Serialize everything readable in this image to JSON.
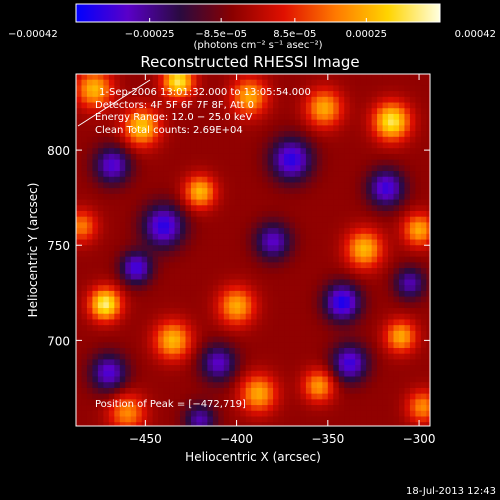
{
  "chart_data": {
    "type": "heatmap",
    "title": "Reconstructed RHESSI Image",
    "xlabel": "Heliocentric X (arcsec)",
    "ylabel": "Heliocentric Y (arcsec)",
    "xlim": [
      -488,
      -294
    ],
    "ylim": [
      655,
      840
    ],
    "x_ticks": [
      -450,
      -400,
      -350,
      -300
    ],
    "x_tick_labels": [
      "−450",
      "−400",
      "−350",
      "−300"
    ],
    "y_ticks": [
      700,
      750,
      800
    ],
    "y_tick_labels": [
      "700",
      "750",
      "800"
    ],
    "colorbar": {
      "min": -0.00042,
      "max": 0.00042,
      "ticks": [
        -0.00042,
        -0.00025,
        -8.5e-05,
        8.5e-05,
        0.00025,
        0.00042
      ],
      "tick_labels": [
        "−0.00042",
        "−0.00025",
        "−8.5e−05",
        "8.5e−05",
        "0.00025",
        "0.00042"
      ],
      "label": "(photons cm⁻² s⁻¹ asec⁻²)",
      "colors": [
        "#0000ff",
        "#5a00c8",
        "#2a0a40",
        "#8a0000",
        "#e01000",
        "#ff7a00",
        "#ffd400",
        "#ffffe0"
      ]
    },
    "info_lines": [
      "1-Sep-2006 13:01:32.000 to 13:05:54.000",
      "Detectors: 4F 5F 6F 7F 8F, Att 0",
      "Energy Range: 12.0 − 25.0 keV",
      "Clean     Total counts: 2.69E+04"
    ],
    "peak_label": "Position of Peak = [−472,719]",
    "peak": {
      "x": -472,
      "y": 719,
      "value": 0.00042
    },
    "timestamp": "18-Jul-2013 12:43",
    "hotspots": [
      {
        "x": -472,
        "y": 719,
        "v": 1.0,
        "s": 6
      },
      {
        "x": -432,
        "y": 836,
        "v": 0.95,
        "s": 6
      },
      {
        "x": -315,
        "y": 815,
        "v": 0.95,
        "s": 7
      },
      {
        "x": -452,
        "y": 812,
        "v": 0.8,
        "s": 7
      },
      {
        "x": -478,
        "y": 832,
        "v": 0.75,
        "s": 7
      },
      {
        "x": -420,
        "y": 778,
        "v": 0.75,
        "s": 6
      },
      {
        "x": -393,
        "y": 828,
        "v": 0.7,
        "s": 7
      },
      {
        "x": -352,
        "y": 822,
        "v": 0.7,
        "s": 7
      },
      {
        "x": -435,
        "y": 700,
        "v": 0.75,
        "s": 7
      },
      {
        "x": -400,
        "y": 718,
        "v": 0.7,
        "s": 7
      },
      {
        "x": -388,
        "y": 672,
        "v": 0.7,
        "s": 7
      },
      {
        "x": -330,
        "y": 748,
        "v": 0.75,
        "s": 7
      },
      {
        "x": -300,
        "y": 758,
        "v": 0.7,
        "s": 6
      },
      {
        "x": -310,
        "y": 702,
        "v": 0.7,
        "s": 6
      },
      {
        "x": -355,
        "y": 676,
        "v": 0.65,
        "s": 6
      },
      {
        "x": -460,
        "y": 662,
        "v": 0.6,
        "s": 7
      },
      {
        "x": -298,
        "y": 665,
        "v": 0.6,
        "s": 6
      },
      {
        "x": -485,
        "y": 760,
        "v": 0.55,
        "s": 6
      },
      {
        "x": -440,
        "y": 760,
        "v": -0.75,
        "s": 8
      },
      {
        "x": -468,
        "y": 792,
        "v": -0.65,
        "s": 7
      },
      {
        "x": -370,
        "y": 795,
        "v": -0.75,
        "s": 8
      },
      {
        "x": -318,
        "y": 780,
        "v": -0.7,
        "s": 7
      },
      {
        "x": -342,
        "y": 720,
        "v": -0.8,
        "s": 7
      },
      {
        "x": -380,
        "y": 752,
        "v": -0.6,
        "s": 7
      },
      {
        "x": -455,
        "y": 738,
        "v": -0.7,
        "s": 6
      },
      {
        "x": -410,
        "y": 688,
        "v": -0.6,
        "s": 7
      },
      {
        "x": -338,
        "y": 688,
        "v": -0.7,
        "s": 7
      },
      {
        "x": -470,
        "y": 683,
        "v": -0.65,
        "s": 7
      },
      {
        "x": -305,
        "y": 730,
        "v": -0.55,
        "s": 6
      },
      {
        "x": -420,
        "y": 658,
        "v": -0.55,
        "s": 6
      }
    ]
  }
}
